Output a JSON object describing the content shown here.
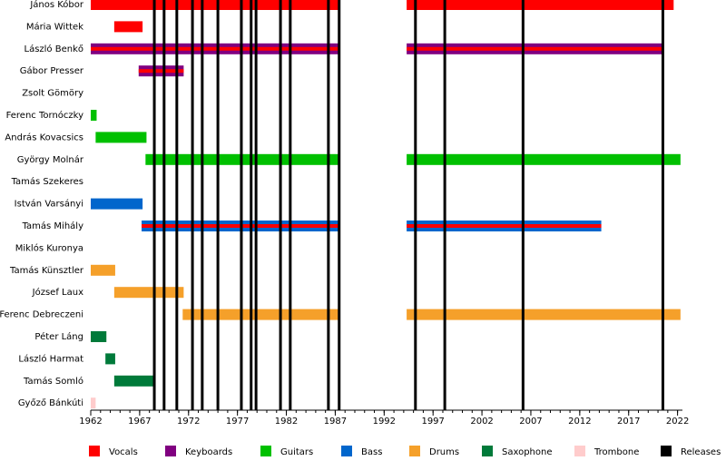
{
  "chart_data": {
    "type": "timeline",
    "xlim": [
      1962,
      2022.5
    ],
    "xticks": [
      1962,
      1967,
      1972,
      1977,
      1982,
      1987,
      1992,
      1997,
      2002,
      2007,
      2012,
      2017,
      2022
    ],
    "legend": [
      {
        "name": "Vocals",
        "color": "#ff0000"
      },
      {
        "name": "Keyboards",
        "color": "#800080"
      },
      {
        "name": "Guitars",
        "color": "#00c000"
      },
      {
        "name": "Bass",
        "color": "#0066cc"
      },
      {
        "name": "Drums",
        "color": "#f5a02a"
      },
      {
        "name": "Saxophone",
        "color": "#007a3a"
      },
      {
        "name": "Trombone",
        "color": "#ffcccc"
      },
      {
        "name": "Releases",
        "color": "#000000"
      }
    ],
    "rows": [
      {
        "name": "János Kóbor",
        "periods": [
          {
            "start": 1962,
            "end": 1987.4,
            "roles": [
              "Vocals"
            ]
          },
          {
            "start": 1994.3,
            "end": 2021.6,
            "roles": [
              "Vocals"
            ]
          }
        ]
      },
      {
        "name": "Mária Wittek",
        "periods": [
          {
            "start": 1964.4,
            "end": 1967.3,
            "roles": [
              "Vocals"
            ]
          }
        ]
      },
      {
        "name": "László Benkő",
        "periods": [
          {
            "start": 1962,
            "end": 1987.4,
            "roles": [
              "Keyboards",
              "Vocals"
            ]
          },
          {
            "start": 1994.3,
            "end": 2020.5,
            "roles": [
              "Keyboards",
              "Vocals"
            ]
          }
        ]
      },
      {
        "name": "Gábor Presser",
        "periods": [
          {
            "start": 1966.9,
            "end": 1971.5,
            "roles": [
              "Keyboards",
              "Vocals"
            ]
          }
        ]
      },
      {
        "name": "Zsolt Gömöry",
        "periods": []
      },
      {
        "name": "Ferenc Tornóczky",
        "periods": [
          {
            "start": 1962,
            "end": 1962.6,
            "roles": [
              "Guitars"
            ]
          }
        ]
      },
      {
        "name": "András Kovacsics",
        "periods": [
          {
            "start": 1962.5,
            "end": 1967.7,
            "roles": [
              "Guitars"
            ]
          }
        ]
      },
      {
        "name": "György Molnár",
        "periods": [
          {
            "start": 1967.6,
            "end": 1987.4,
            "roles": [
              "Guitars"
            ]
          },
          {
            "start": 1994.3,
            "end": 2022.3,
            "roles": [
              "Guitars"
            ]
          }
        ]
      },
      {
        "name": "Tamás Szekeres",
        "periods": []
      },
      {
        "name": "István Varsányi",
        "periods": [
          {
            "start": 1962,
            "end": 1967.3,
            "roles": [
              "Bass"
            ]
          }
        ]
      },
      {
        "name": "Tamás Mihály",
        "periods": [
          {
            "start": 1967.2,
            "end": 1987.4,
            "roles": [
              "Bass",
              "Vocals"
            ]
          },
          {
            "start": 1994.3,
            "end": 2014.2,
            "roles": [
              "Bass",
              "Vocals"
            ]
          }
        ]
      },
      {
        "name": "Miklós Kuronya",
        "periods": []
      },
      {
        "name": "Tamás Künsztler",
        "periods": [
          {
            "start": 1962,
            "end": 1964.5,
            "roles": [
              "Drums"
            ]
          }
        ]
      },
      {
        "name": "József Laux",
        "periods": [
          {
            "start": 1964.4,
            "end": 1971.5,
            "roles": [
              "Drums"
            ]
          }
        ]
      },
      {
        "name": "Ferenc Debreczeni",
        "periods": [
          {
            "start": 1971.4,
            "end": 1987.4,
            "roles": [
              "Drums"
            ]
          },
          {
            "start": 1994.3,
            "end": 2022.3,
            "roles": [
              "Drums"
            ]
          }
        ]
      },
      {
        "name": "Péter Láng",
        "periods": [
          {
            "start": 1962,
            "end": 1963.6,
            "roles": [
              "Saxophone"
            ]
          }
        ]
      },
      {
        "name": "László Harmat",
        "periods": [
          {
            "start": 1963.5,
            "end": 1964.5,
            "roles": [
              "Saxophone"
            ]
          }
        ]
      },
      {
        "name": "Tamás Somló",
        "periods": [
          {
            "start": 1964.4,
            "end": 1968.5,
            "roles": [
              "Saxophone"
            ]
          }
        ]
      },
      {
        "name": "Győző Bánkúti",
        "periods": [
          {
            "start": 1962,
            "end": 1962.5,
            "roles": [
              "Trombone"
            ]
          }
        ]
      }
    ],
    "releases": [
      1968.5,
      1969.5,
      1970.8,
      1972.4,
      1973.4,
      1975.0,
      1977.4,
      1978.4,
      1978.9,
      1981.4,
      1982.4,
      1986.3,
      1987.4,
      1995.2,
      1998.2,
      2006.2,
      2020.5
    ]
  }
}
